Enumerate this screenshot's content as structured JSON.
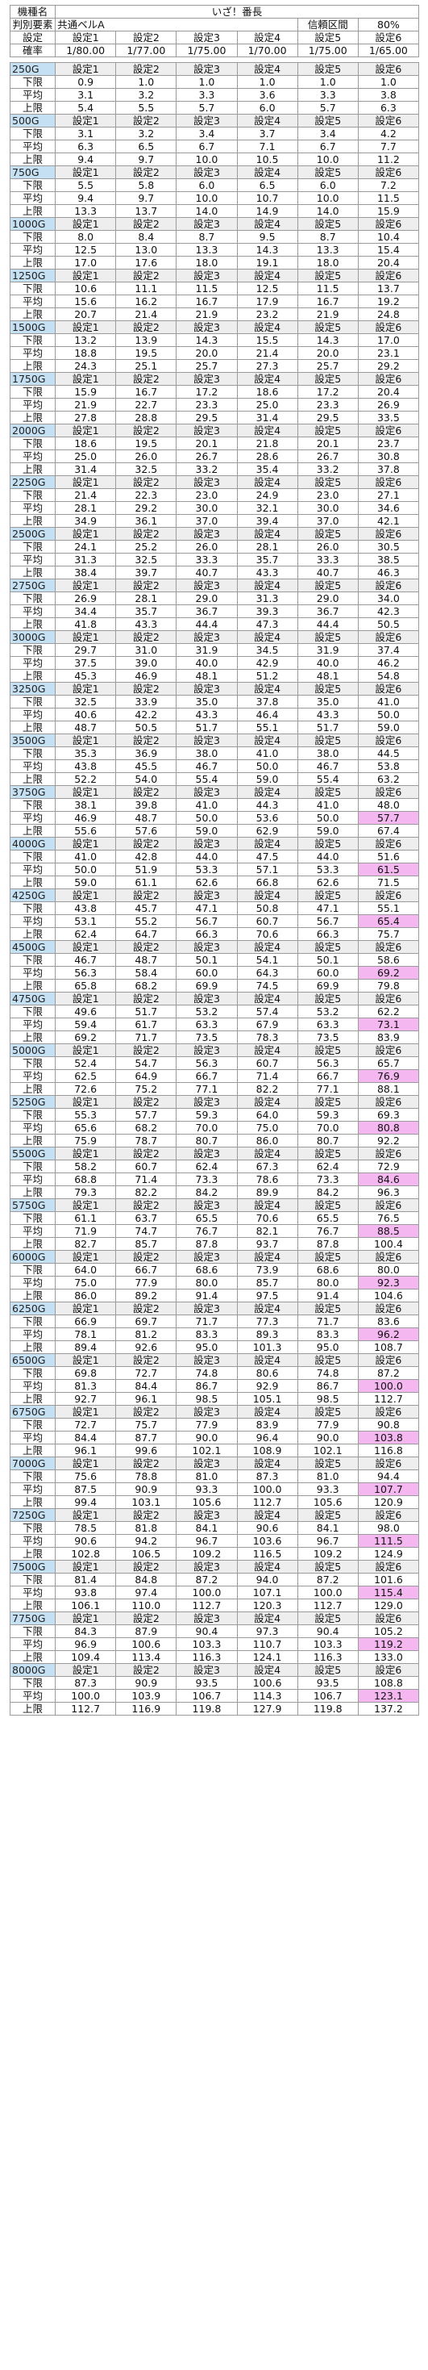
{
  "header": {
    "row1": {
      "label": "機種名",
      "title": "いざ！番長"
    },
    "row2": {
      "label": "判別要素",
      "element": "共通ベルA",
      "interval_label": "信頼区間",
      "interval": "80%"
    },
    "row3": {
      "label": "設定",
      "settings": [
        "設定1",
        "設定2",
        "設定3",
        "設定4",
        "設定5",
        "設定6"
      ]
    },
    "row4": {
      "label": "確率",
      "probs": [
        "1/80.00",
        "1/77.00",
        "1/75.00",
        "1/70.00",
        "1/75.00",
        "1/65.00"
      ]
    }
  },
  "row_labels": {
    "low": "下限",
    "avg": "平均",
    "high": "上限"
  },
  "settings_labels": [
    "設定1",
    "設定2",
    "設定3",
    "設定4",
    "設定5",
    "設定6"
  ],
  "highlight_color": "#f5b7f0",
  "blocks": [
    {
      "g": "250G",
      "low": [
        "0.9",
        "1.0",
        "1.0",
        "1.0",
        "1.0",
        "1.0"
      ],
      "avg": [
        "3.1",
        "3.2",
        "3.3",
        "3.6",
        "3.3",
        "3.8"
      ],
      "high": [
        "5.4",
        "5.5",
        "5.7",
        "6.0",
        "5.7",
        "6.3"
      ]
    },
    {
      "g": "500G",
      "low": [
        "3.1",
        "3.2",
        "3.4",
        "3.7",
        "3.4",
        "4.2"
      ],
      "avg": [
        "6.3",
        "6.5",
        "6.7",
        "7.1",
        "6.7",
        "7.7"
      ],
      "high": [
        "9.4",
        "9.7",
        "10.0",
        "10.5",
        "10.0",
        "11.2"
      ]
    },
    {
      "g": "750G",
      "low": [
        "5.5",
        "5.8",
        "6.0",
        "6.5",
        "6.0",
        "7.2"
      ],
      "avg": [
        "9.4",
        "9.7",
        "10.0",
        "10.7",
        "10.0",
        "11.5"
      ],
      "high": [
        "13.3",
        "13.7",
        "14.0",
        "14.9",
        "14.0",
        "15.9"
      ]
    },
    {
      "g": "1000G",
      "low": [
        "8.0",
        "8.4",
        "8.7",
        "9.5",
        "8.7",
        "10.4"
      ],
      "avg": [
        "12.5",
        "13.0",
        "13.3",
        "14.3",
        "13.3",
        "15.4"
      ],
      "high": [
        "17.0",
        "17.6",
        "18.0",
        "19.1",
        "18.0",
        "20.4"
      ]
    },
    {
      "g": "1250G",
      "low": [
        "10.6",
        "11.1",
        "11.5",
        "12.5",
        "11.5",
        "13.7"
      ],
      "avg": [
        "15.6",
        "16.2",
        "16.7",
        "17.9",
        "16.7",
        "19.2"
      ],
      "high": [
        "20.7",
        "21.4",
        "21.9",
        "23.2",
        "21.9",
        "24.8"
      ]
    },
    {
      "g": "1500G",
      "low": [
        "13.2",
        "13.9",
        "14.3",
        "15.5",
        "14.3",
        "17.0"
      ],
      "avg": [
        "18.8",
        "19.5",
        "20.0",
        "21.4",
        "20.0",
        "23.1"
      ],
      "high": [
        "24.3",
        "25.1",
        "25.7",
        "27.3",
        "25.7",
        "29.2"
      ]
    },
    {
      "g": "1750G",
      "low": [
        "15.9",
        "16.7",
        "17.2",
        "18.6",
        "17.2",
        "20.4"
      ],
      "avg": [
        "21.9",
        "22.7",
        "23.3",
        "25.0",
        "23.3",
        "26.9"
      ],
      "high": [
        "27.8",
        "28.8",
        "29.5",
        "31.4",
        "29.5",
        "33.5"
      ]
    },
    {
      "g": "2000G",
      "low": [
        "18.6",
        "19.5",
        "20.1",
        "21.8",
        "20.1",
        "23.7"
      ],
      "avg": [
        "25.0",
        "26.0",
        "26.7",
        "28.6",
        "26.7",
        "30.8"
      ],
      "high": [
        "31.4",
        "32.5",
        "33.2",
        "35.4",
        "33.2",
        "37.8"
      ]
    },
    {
      "g": "2250G",
      "low": [
        "21.4",
        "22.3",
        "23.0",
        "24.9",
        "23.0",
        "27.1"
      ],
      "avg": [
        "28.1",
        "29.2",
        "30.0",
        "32.1",
        "30.0",
        "34.6"
      ],
      "high": [
        "34.9",
        "36.1",
        "37.0",
        "39.4",
        "37.0",
        "42.1"
      ]
    },
    {
      "g": "2500G",
      "low": [
        "24.1",
        "25.2",
        "26.0",
        "28.1",
        "26.0",
        "30.5"
      ],
      "avg": [
        "31.3",
        "32.5",
        "33.3",
        "35.7",
        "33.3",
        "38.5"
      ],
      "high": [
        "38.4",
        "39.7",
        "40.7",
        "43.3",
        "40.7",
        "46.3"
      ]
    },
    {
      "g": "2750G",
      "low": [
        "26.9",
        "28.1",
        "29.0",
        "31.3",
        "29.0",
        "34.0"
      ],
      "avg": [
        "34.4",
        "35.7",
        "36.7",
        "39.3",
        "36.7",
        "42.3"
      ],
      "high": [
        "41.8",
        "43.3",
        "44.4",
        "47.3",
        "44.4",
        "50.5"
      ]
    },
    {
      "g": "3000G",
      "low": [
        "29.7",
        "31.0",
        "31.9",
        "34.5",
        "31.9",
        "37.4"
      ],
      "avg": [
        "37.5",
        "39.0",
        "40.0",
        "42.9",
        "40.0",
        "46.2"
      ],
      "high": [
        "45.3",
        "46.9",
        "48.1",
        "51.2",
        "48.1",
        "54.8"
      ]
    },
    {
      "g": "3250G",
      "low": [
        "32.5",
        "33.9",
        "35.0",
        "37.8",
        "35.0",
        "41.0"
      ],
      "avg": [
        "40.6",
        "42.2",
        "43.3",
        "46.4",
        "43.3",
        "50.0"
      ],
      "high": [
        "48.7",
        "50.5",
        "51.7",
        "55.1",
        "51.7",
        "59.0"
      ]
    },
    {
      "g": "3500G",
      "low": [
        "35.3",
        "36.9",
        "38.0",
        "41.0",
        "38.0",
        "44.5"
      ],
      "avg": [
        "43.8",
        "45.5",
        "46.7",
        "50.0",
        "46.7",
        "53.8"
      ],
      "high": [
        "52.2",
        "54.0",
        "55.4",
        "59.0",
        "55.4",
        "63.2"
      ]
    },
    {
      "g": "3750G",
      "low": [
        "38.1",
        "39.8",
        "41.0",
        "44.3",
        "41.0",
        "48.0"
      ],
      "avg": [
        "46.9",
        "48.7",
        "50.0",
        "53.6",
        "50.0",
        "57.7"
      ],
      "high": [
        "55.6",
        "57.6",
        "59.0",
        "62.9",
        "59.0",
        "67.4"
      ],
      "pink": "avg"
    },
    {
      "g": "4000G",
      "low": [
        "41.0",
        "42.8",
        "44.0",
        "47.5",
        "44.0",
        "51.6"
      ],
      "avg": [
        "50.0",
        "51.9",
        "53.3",
        "57.1",
        "53.3",
        "61.5"
      ],
      "high": [
        "59.0",
        "61.1",
        "62.6",
        "66.8",
        "62.6",
        "71.5"
      ],
      "pink": "avg"
    },
    {
      "g": "4250G",
      "low": [
        "43.8",
        "45.7",
        "47.1",
        "50.8",
        "47.1",
        "55.1"
      ],
      "avg": [
        "53.1",
        "55.2",
        "56.7",
        "60.7",
        "56.7",
        "65.4"
      ],
      "high": [
        "62.4",
        "64.7",
        "66.3",
        "70.6",
        "66.3",
        "75.7"
      ],
      "pink": "avg"
    },
    {
      "g": "4500G",
      "low": [
        "46.7",
        "48.7",
        "50.1",
        "54.1",
        "50.1",
        "58.6"
      ],
      "avg": [
        "56.3",
        "58.4",
        "60.0",
        "64.3",
        "60.0",
        "69.2"
      ],
      "high": [
        "65.8",
        "68.2",
        "69.9",
        "74.5",
        "69.9",
        "79.8"
      ],
      "pink": "avg"
    },
    {
      "g": "4750G",
      "low": [
        "49.6",
        "51.7",
        "53.2",
        "57.4",
        "53.2",
        "62.2"
      ],
      "avg": [
        "59.4",
        "61.7",
        "63.3",
        "67.9",
        "63.3",
        "73.1"
      ],
      "high": [
        "69.2",
        "71.7",
        "73.5",
        "78.3",
        "73.5",
        "83.9"
      ],
      "pink": "avg"
    },
    {
      "g": "5000G",
      "low": [
        "52.4",
        "54.7",
        "56.3",
        "60.7",
        "56.3",
        "65.7"
      ],
      "avg": [
        "62.5",
        "64.9",
        "66.7",
        "71.4",
        "66.7",
        "76.9"
      ],
      "high": [
        "72.6",
        "75.2",
        "77.1",
        "82.2",
        "77.1",
        "88.1"
      ],
      "pink": "avg"
    },
    {
      "g": "5250G",
      "low": [
        "55.3",
        "57.7",
        "59.3",
        "64.0",
        "59.3",
        "69.3"
      ],
      "avg": [
        "65.6",
        "68.2",
        "70.0",
        "75.0",
        "70.0",
        "80.8"
      ],
      "high": [
        "75.9",
        "78.7",
        "80.7",
        "86.0",
        "80.7",
        "92.2"
      ],
      "pink": "avg"
    },
    {
      "g": "5500G",
      "low": [
        "58.2",
        "60.7",
        "62.4",
        "67.3",
        "62.4",
        "72.9"
      ],
      "avg": [
        "68.8",
        "71.4",
        "73.3",
        "78.6",
        "73.3",
        "84.6"
      ],
      "high": [
        "79.3",
        "82.2",
        "84.2",
        "89.9",
        "84.2",
        "96.3"
      ],
      "pink": "avg"
    },
    {
      "g": "5750G",
      "low": [
        "61.1",
        "63.7",
        "65.5",
        "70.6",
        "65.5",
        "76.5"
      ],
      "avg": [
        "71.9",
        "74.7",
        "76.7",
        "82.1",
        "76.7",
        "88.5"
      ],
      "high": [
        "82.7",
        "85.7",
        "87.8",
        "93.7",
        "87.8",
        "100.4"
      ],
      "pink": "avg"
    },
    {
      "g": "6000G",
      "low": [
        "64.0",
        "66.7",
        "68.6",
        "73.9",
        "68.6",
        "80.0"
      ],
      "avg": [
        "75.0",
        "77.9",
        "80.0",
        "85.7",
        "80.0",
        "92.3"
      ],
      "high": [
        "86.0",
        "89.2",
        "91.4",
        "97.5",
        "91.4",
        "104.6"
      ],
      "pink": "avg"
    },
    {
      "g": "6250G",
      "low": [
        "66.9",
        "69.7",
        "71.7",
        "77.3",
        "71.7",
        "83.6"
      ],
      "avg": [
        "78.1",
        "81.2",
        "83.3",
        "89.3",
        "83.3",
        "96.2"
      ],
      "high": [
        "89.4",
        "92.6",
        "95.0",
        "101.3",
        "95.0",
        "108.7"
      ],
      "pink": "avg"
    },
    {
      "g": "6500G",
      "low": [
        "69.8",
        "72.7",
        "74.8",
        "80.6",
        "74.8",
        "87.2"
      ],
      "avg": [
        "81.3",
        "84.4",
        "86.7",
        "92.9",
        "86.7",
        "100.0"
      ],
      "high": [
        "92.7",
        "96.1",
        "98.5",
        "105.1",
        "98.5",
        "112.7"
      ],
      "pink": "avg"
    },
    {
      "g": "6750G",
      "low": [
        "72.7",
        "75.7",
        "77.9",
        "83.9",
        "77.9",
        "90.8"
      ],
      "avg": [
        "84.4",
        "87.7",
        "90.0",
        "96.4",
        "90.0",
        "103.8"
      ],
      "high": [
        "96.1",
        "99.6",
        "102.1",
        "108.9",
        "102.1",
        "116.8"
      ],
      "pink": "avg"
    },
    {
      "g": "7000G",
      "low": [
        "75.6",
        "78.8",
        "81.0",
        "87.3",
        "81.0",
        "94.4"
      ],
      "avg": [
        "87.5",
        "90.9",
        "93.3",
        "100.0",
        "93.3",
        "107.7"
      ],
      "high": [
        "99.4",
        "103.1",
        "105.6",
        "112.7",
        "105.6",
        "120.9"
      ],
      "pink": "avg"
    },
    {
      "g": "7250G",
      "low": [
        "78.5",
        "81.8",
        "84.1",
        "90.6",
        "84.1",
        "98.0"
      ],
      "avg": [
        "90.6",
        "94.2",
        "96.7",
        "103.6",
        "96.7",
        "111.5"
      ],
      "high": [
        "102.8",
        "106.5",
        "109.2",
        "116.5",
        "109.2",
        "124.9"
      ],
      "pink": "avg"
    },
    {
      "g": "7500G",
      "low": [
        "81.4",
        "84.8",
        "87.2",
        "94.0",
        "87.2",
        "101.6"
      ],
      "avg": [
        "93.8",
        "97.4",
        "100.0",
        "107.1",
        "100.0",
        "115.4"
      ],
      "high": [
        "106.1",
        "110.0",
        "112.7",
        "120.3",
        "112.7",
        "129.0"
      ],
      "pink": "avg"
    },
    {
      "g": "7750G",
      "low": [
        "84.3",
        "87.9",
        "90.4",
        "97.3",
        "90.4",
        "105.2"
      ],
      "avg": [
        "96.9",
        "100.6",
        "103.3",
        "110.7",
        "103.3",
        "119.2"
      ],
      "high": [
        "109.4",
        "113.4",
        "116.3",
        "124.1",
        "116.3",
        "133.0"
      ],
      "pink": "avg"
    },
    {
      "g": "8000G",
      "low": [
        "87.3",
        "90.9",
        "93.5",
        "100.6",
        "93.5",
        "108.8"
      ],
      "avg": [
        "100.0",
        "103.9",
        "106.7",
        "114.3",
        "106.7",
        "123.1"
      ],
      "high": [
        "112.7",
        "116.9",
        "119.8",
        "127.9",
        "119.8",
        "137.2"
      ],
      "pink": "avg"
    }
  ]
}
